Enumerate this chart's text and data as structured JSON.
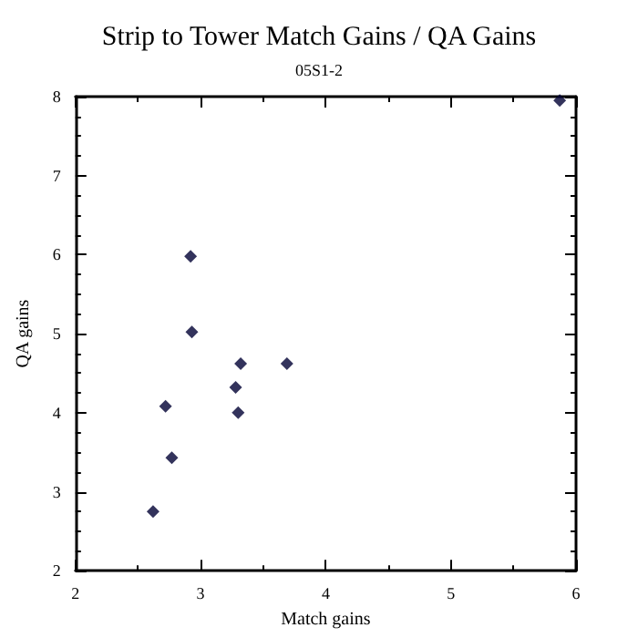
{
  "chart_data": {
    "type": "scatter",
    "title": "Strip to Tower Match Gains / QA Gains",
    "subtitle": "05S1-2",
    "xlabel": "Match gains",
    "ylabel": "QA gains",
    "x": [
      2.62,
      2.72,
      2.77,
      2.92,
      2.93,
      3.28,
      3.3,
      3.32,
      3.69,
      5.87
    ],
    "values": [
      2.75,
      4.08,
      3.43,
      5.98,
      5.02,
      4.32,
      4.0,
      4.62,
      4.62,
      7.95
    ],
    "color": "#000033",
    "marker": "diamond",
    "grid": false,
    "xlim": [
      2,
      6
    ],
    "xticks": [
      2,
      3,
      4,
      5,
      6
    ],
    "ylim": [
      2,
      8
    ],
    "yticks": [
      2,
      3,
      4,
      5,
      6,
      7,
      8
    ]
  }
}
